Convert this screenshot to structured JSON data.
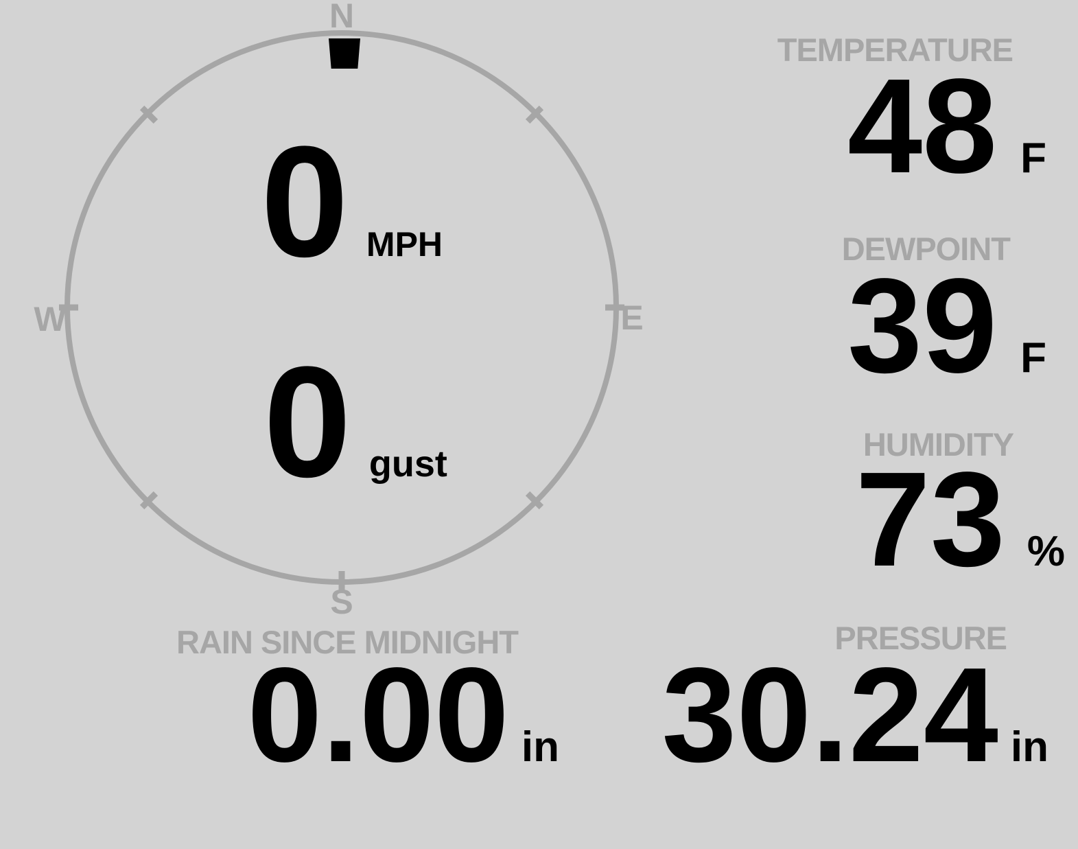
{
  "colors": {
    "background": "#d3d3d3",
    "muted_gray": "#a6a6a6",
    "ink": "#000000"
  },
  "wind": {
    "compass": {
      "n": "N",
      "e": "E",
      "s": "S",
      "w": "W"
    },
    "direction": "N",
    "direction_deg": 0,
    "speed": {
      "value": "0",
      "unit": "MPH"
    },
    "gust": {
      "value": "0",
      "unit": "gust"
    }
  },
  "metrics": {
    "temperature": {
      "label": "TEMPERATURE",
      "value": "48",
      "unit": "F"
    },
    "dewpoint": {
      "label": "DEWPOINT",
      "value": "39",
      "unit": "F"
    },
    "humidity": {
      "label": "HUMIDITY",
      "value": "73",
      "unit": "%"
    },
    "rain": {
      "label": "RAIN SINCE MIDNIGHT",
      "value": "0.00",
      "unit": "in"
    },
    "pressure": {
      "label": "PRESSURE",
      "value": "30.24",
      "unit": "in"
    }
  }
}
